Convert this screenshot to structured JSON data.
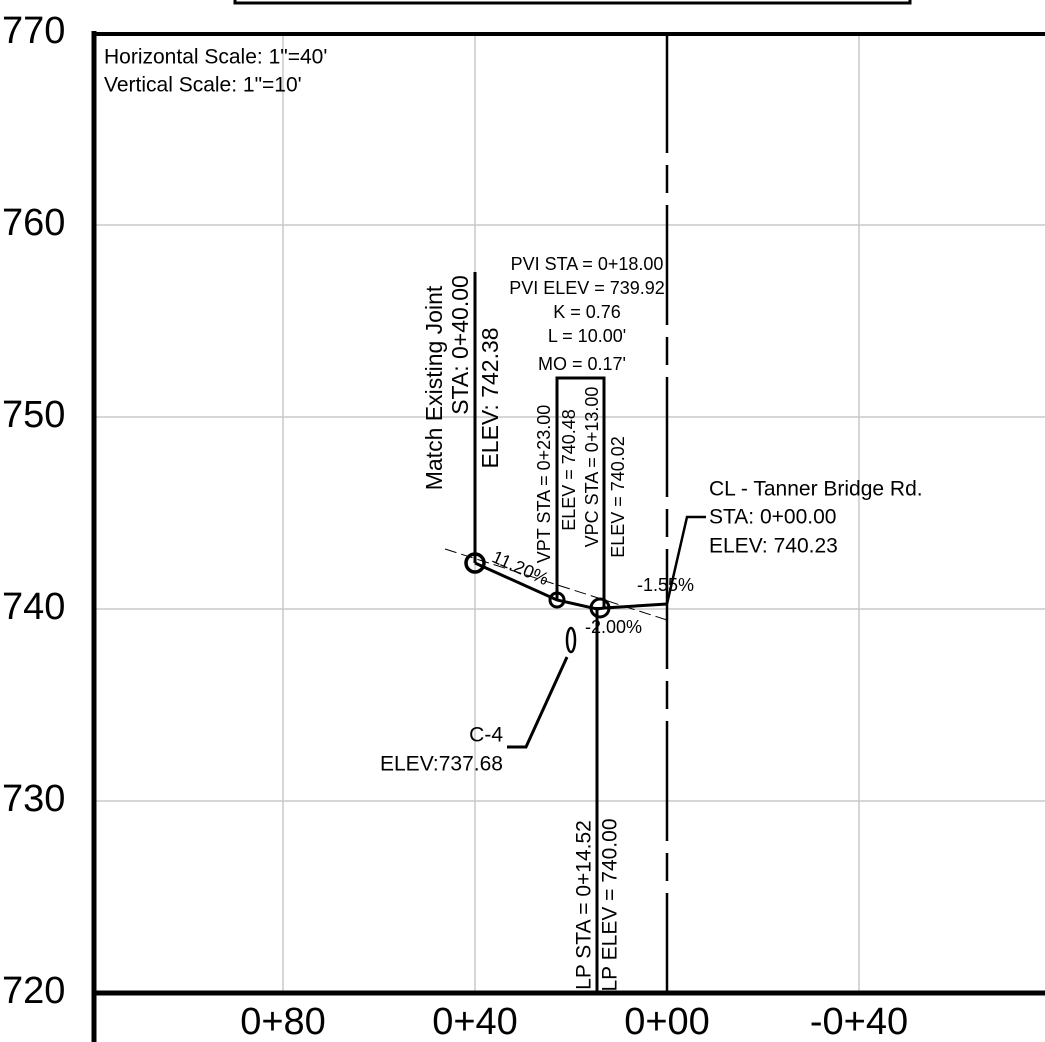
{
  "scale": {
    "horizontal": "Horizontal Scale: 1\"=40'",
    "vertical": "Vertical Scale: 1\"=10'"
  },
  "y_labels": [
    "770",
    "760",
    "750",
    "740",
    "730",
    "720"
  ],
  "x_labels": [
    "0+80",
    "0+40",
    "0+00",
    "-0+40"
  ],
  "pvi": [
    "PVI STA = 0+18.00",
    "PVI ELEV = 739.92",
    "K = 0.76",
    "L = 10.00'",
    "MO = 0.17'"
  ],
  "match": [
    "Match Existing Joint",
    "STA: 0+40.00",
    "ELEV: 742.38"
  ],
  "vpt": [
    "VPT STA = 0+23.00",
    "ELEV = 740.48"
  ],
  "vpc": [
    "VPC STA = 0+13.00",
    "ELEV = 740.02"
  ],
  "lp": [
    "LP STA = 0+14.52",
    "LP ELEV = 740.00"
  ],
  "grades": [
    "11.20%",
    "-1.55%",
    "-2.00%"
  ],
  "cl": [
    "CL - Tanner Bridge Rd.",
    "STA: 0+00.00",
    "ELEV: 740.23"
  ],
  "c4": [
    "C-4",
    "ELEV:737.68"
  ]
}
